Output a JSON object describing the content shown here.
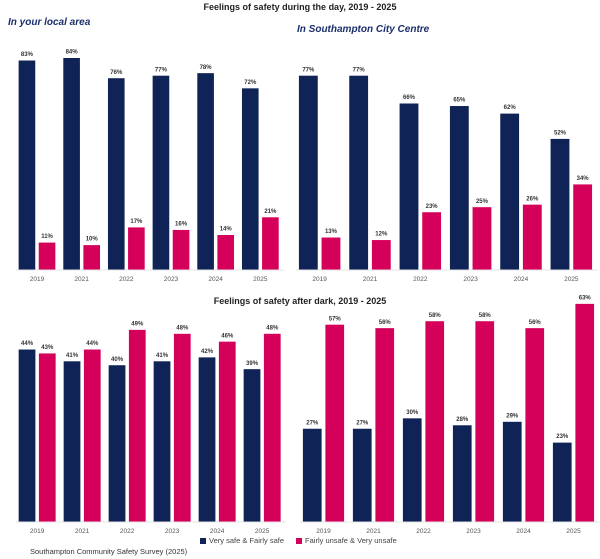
{
  "colors": {
    "safe": "#0f2357",
    "unsafe": "#d5005a"
  },
  "legend": [
    "Very safe & Fairly safe",
    "Fairly unsafe & Very unsafe"
  ],
  "source": "Southampton Community Safety Survey (2025)",
  "chart_data": [
    {
      "type": "bar",
      "title": "Feelings of safety during the day, 2019 - 2025",
      "subtitle": "In your local area",
      "categories": [
        "2019",
        "2021",
        "2022",
        "2023",
        "2024",
        "2025"
      ],
      "ylim": [
        0,
        87
      ],
      "grid": false,
      "series": [
        {
          "name": "Very safe & Fairly safe",
          "values": [
            83,
            84,
            76,
            77,
            78,
            72
          ]
        },
        {
          "name": "Fairly unsafe & Very unsafe",
          "values": [
            11,
            10,
            17,
            16,
            14,
            21
          ]
        }
      ]
    },
    {
      "type": "bar",
      "subtitle": "In Southampton City Centre",
      "categories": [
        "2019",
        "2021",
        "2022",
        "2023",
        "2024",
        "2025"
      ],
      "ylim": [
        0,
        87
      ],
      "grid": false,
      "series": [
        {
          "name": "Very safe & Fairly safe",
          "values": [
            77,
            77,
            66,
            65,
            62,
            52
          ]
        },
        {
          "name": "Fairly unsafe & Very unsafe",
          "values": [
            13,
            12,
            23,
            25,
            26,
            34
          ]
        }
      ]
    },
    {
      "type": "bar",
      "title": "Feelings of safety after dark, 2019 - 2025",
      "categories": [
        "2019",
        "2021",
        "2022",
        "2023",
        "2024",
        "2025"
      ],
      "ylim": [
        0,
        56.5
      ],
      "grid": false,
      "series": [
        {
          "name": "Very safe & Fairly safe",
          "values": [
            44,
            41,
            40,
            41,
            42,
            39
          ]
        },
        {
          "name": "Fairly unsafe & Very unsafe",
          "values": [
            43,
            44,
            49,
            48,
            46,
            48
          ]
        }
      ]
    },
    {
      "type": "bar",
      "categories": [
        "2019",
        "2021",
        "2022",
        "2023",
        "2024",
        "2025"
      ],
      "ylim": [
        0,
        64
      ],
      "grid": false,
      "series": [
        {
          "name": "Very safe & Fairly safe",
          "values": [
            27,
            27,
            30,
            28,
            29,
            23
          ]
        },
        {
          "name": "Fairly unsafe & Very unsafe",
          "values": [
            57,
            56,
            58,
            58,
            56,
            63
          ]
        }
      ]
    }
  ]
}
